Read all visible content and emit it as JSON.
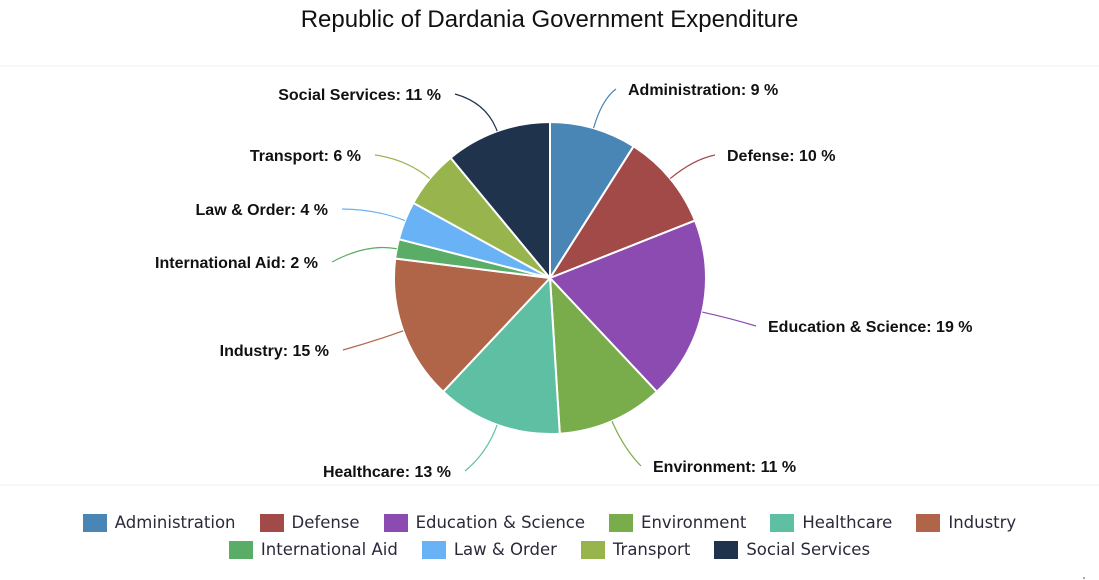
{
  "chart_data": {
    "type": "pie",
    "title": "Republic of Dardania Government Expenditure",
    "unit": "%",
    "start_angle": "top",
    "direction": "clockwise",
    "legend_placement": "bottom",
    "slices": [
      {
        "label": "Administration",
        "value": 9,
        "color": "#4a86b5",
        "data_label": "Administration: 9 %"
      },
      {
        "label": "Defense",
        "value": 10,
        "color": "#a24a48",
        "data_label": "Defense: 10 %"
      },
      {
        "label": "Education & Science",
        "value": 19,
        "color": "#8b4bb1",
        "data_label": "Education & Science: 19 %"
      },
      {
        "label": "Environment",
        "value": 11,
        "color": "#79ad4c",
        "data_label": "Environment: 11 %"
      },
      {
        "label": "Healthcare",
        "value": 13,
        "color": "#5fbfa2",
        "data_label": "Healthcare: 13 %"
      },
      {
        "label": "Industry",
        "value": 15,
        "color": "#b06448",
        "data_label": "Industry: 15 %"
      },
      {
        "label": "International Aid",
        "value": 2,
        "color": "#5aad67",
        "data_label": "International Aid: 2 %"
      },
      {
        "label": "Law & Order",
        "value": 4,
        "color": "#68b2f5",
        "data_label": "Law & Order: 4 %"
      },
      {
        "label": "Transport",
        "value": 6,
        "color": "#97b44d",
        "data_label": "Transport: 6 %"
      },
      {
        "label": "Social Services",
        "value": 11,
        "color": "#1f344c",
        "data_label": "Social Services: 11 %"
      }
    ]
  },
  "legend": {
    "rows": [
      [
        0,
        1,
        2,
        3,
        4,
        5
      ],
      [
        6,
        7,
        8,
        9
      ]
    ]
  }
}
